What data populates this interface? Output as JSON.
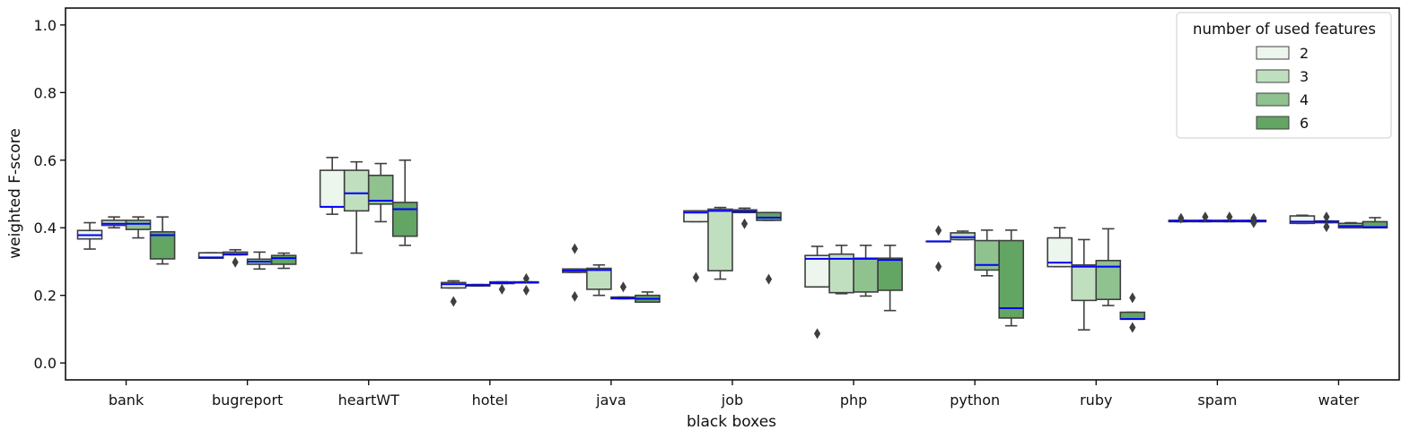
{
  "chart_data": {
    "type": "box",
    "xlabel": "black boxes",
    "ylabel": "weighted F-score",
    "ylim": [
      -0.05,
      1.05
    ],
    "yticks": [
      "0.0",
      "0.2",
      "0.4",
      "0.6",
      "0.8",
      "1.0"
    ],
    "categories": [
      "bank",
      "bugreport",
      "heartWT",
      "hotel",
      "java",
      "job",
      "php",
      "python",
      "ruby",
      "spam",
      "water"
    ],
    "legend": {
      "title": "number of used features",
      "position": "top-right",
      "entries": [
        "2",
        "3",
        "4",
        "6"
      ]
    },
    "colors": {
      "series": [
        "#edf6ed",
        "#c0dfbf",
        "#8fc28f",
        "#63a563"
      ],
      "median": "#0000ff",
      "outline": "#3f3f3f"
    },
    "series": [
      {
        "name": "2",
        "boxes": [
          {
            "q1": 0.367,
            "median": 0.378,
            "q3": 0.392,
            "whislo": 0.337,
            "whishi": 0.415,
            "fliers": []
          },
          {
            "q1": 0.31,
            "median": 0.312,
            "q3": 0.326,
            "whislo": 0.31,
            "whishi": 0.326,
            "fliers": []
          },
          {
            "q1": 0.462,
            "median": 0.462,
            "q3": 0.57,
            "whislo": 0.44,
            "whishi": 0.608,
            "fliers": []
          },
          {
            "q1": 0.222,
            "median": 0.233,
            "q3": 0.238,
            "whislo": 0.222,
            "whishi": 0.243,
            "fliers": [
              0.182
            ]
          },
          {
            "q1": 0.268,
            "median": 0.273,
            "q3": 0.278,
            "whislo": 0.268,
            "whishi": 0.278,
            "fliers": [
              0.338,
              0.197
            ]
          },
          {
            "q1": 0.418,
            "median": 0.445,
            "q3": 0.45,
            "whislo": 0.418,
            "whishi": 0.45,
            "fliers": [
              0.253
            ]
          },
          {
            "q1": 0.225,
            "median": 0.308,
            "q3": 0.318,
            "whislo": 0.225,
            "whishi": 0.345,
            "fliers": [
              0.087
            ]
          },
          {
            "q1": 0.36,
            "median": 0.36,
            "q3": 0.36,
            "whislo": 0.36,
            "whishi": 0.36,
            "fliers": [
              0.392,
              0.285
            ]
          },
          {
            "q1": 0.285,
            "median": 0.297,
            "q3": 0.37,
            "whislo": 0.285,
            "whishi": 0.4,
            "fliers": []
          },
          {
            "q1": 0.418,
            "median": 0.42,
            "q3": 0.422,
            "whislo": 0.418,
            "whishi": 0.422,
            "fliers": [
              0.428
            ]
          },
          {
            "q1": 0.413,
            "median": 0.418,
            "q3": 0.435,
            "whislo": 0.413,
            "whishi": 0.437,
            "fliers": []
          }
        ]
      },
      {
        "name": "3",
        "boxes": [
          {
            "q1": 0.407,
            "median": 0.412,
            "q3": 0.422,
            "whislo": 0.4,
            "whishi": 0.432,
            "fliers": []
          },
          {
            "q1": 0.32,
            "median": 0.322,
            "q3": 0.328,
            "whislo": 0.32,
            "whishi": 0.335,
            "fliers": [
              0.298
            ]
          },
          {
            "q1": 0.45,
            "median": 0.502,
            "q3": 0.57,
            "whislo": 0.325,
            "whishi": 0.595,
            "fliers": []
          },
          {
            "q1": 0.228,
            "median": 0.23,
            "q3": 0.232,
            "whislo": 0.228,
            "whishi": 0.232,
            "fliers": []
          },
          {
            "q1": 0.218,
            "median": 0.275,
            "q3": 0.28,
            "whislo": 0.2,
            "whishi": 0.29,
            "fliers": []
          },
          {
            "q1": 0.273,
            "median": 0.45,
            "q3": 0.455,
            "whislo": 0.248,
            "whishi": 0.46,
            "fliers": []
          },
          {
            "q1": 0.208,
            "median": 0.308,
            "q3": 0.322,
            "whislo": 0.205,
            "whishi": 0.348,
            "fliers": []
          },
          {
            "q1": 0.365,
            "median": 0.372,
            "q3": 0.385,
            "whislo": 0.365,
            "whishi": 0.39,
            "fliers": []
          },
          {
            "q1": 0.185,
            "median": 0.285,
            "q3": 0.29,
            "whislo": 0.098,
            "whishi": 0.365,
            "fliers": []
          },
          {
            "q1": 0.418,
            "median": 0.42,
            "q3": 0.422,
            "whislo": 0.418,
            "whishi": 0.422,
            "fliers": [
              0.432
            ]
          },
          {
            "q1": 0.415,
            "median": 0.418,
            "q3": 0.42,
            "whislo": 0.415,
            "whishi": 0.42,
            "fliers": [
              0.432,
              0.403
            ]
          }
        ]
      },
      {
        "name": "4",
        "boxes": [
          {
            "q1": 0.395,
            "median": 0.412,
            "q3": 0.422,
            "whislo": 0.37,
            "whishi": 0.432,
            "fliers": []
          },
          {
            "q1": 0.292,
            "median": 0.3,
            "q3": 0.307,
            "whislo": 0.278,
            "whishi": 0.328,
            "fliers": []
          },
          {
            "q1": 0.47,
            "median": 0.48,
            "q3": 0.555,
            "whislo": 0.418,
            "whishi": 0.59,
            "fliers": []
          },
          {
            "q1": 0.235,
            "median": 0.237,
            "q3": 0.24,
            "whislo": 0.235,
            "whishi": 0.24,
            "fliers": [
              0.218
            ]
          },
          {
            "q1": 0.19,
            "median": 0.192,
            "q3": 0.195,
            "whislo": 0.19,
            "whishi": 0.195,
            "fliers": [
              0.225
            ]
          },
          {
            "q1": 0.445,
            "median": 0.448,
            "q3": 0.453,
            "whislo": 0.445,
            "whishi": 0.458,
            "fliers": [
              0.412
            ]
          },
          {
            "q1": 0.21,
            "median": 0.308,
            "q3": 0.31,
            "whislo": 0.198,
            "whishi": 0.348,
            "fliers": []
          },
          {
            "q1": 0.275,
            "median": 0.29,
            "q3": 0.362,
            "whislo": 0.258,
            "whishi": 0.393,
            "fliers": []
          },
          {
            "q1": 0.188,
            "median": 0.285,
            "q3": 0.303,
            "whislo": 0.17,
            "whishi": 0.397,
            "fliers": []
          },
          {
            "q1": 0.418,
            "median": 0.42,
            "q3": 0.422,
            "whislo": 0.418,
            "whishi": 0.422,
            "fliers": [
              0.432
            ]
          },
          {
            "q1": 0.4,
            "median": 0.405,
            "q3": 0.413,
            "whislo": 0.4,
            "whishi": 0.415,
            "fliers": []
          }
        ]
      },
      {
        "name": "6",
        "boxes": [
          {
            "q1": 0.308,
            "median": 0.378,
            "q3": 0.388,
            "whislo": 0.293,
            "whishi": 0.432,
            "fliers": []
          },
          {
            "q1": 0.292,
            "median": 0.31,
            "q3": 0.318,
            "whislo": 0.28,
            "whishi": 0.325,
            "fliers": []
          },
          {
            "q1": 0.375,
            "median": 0.455,
            "q3": 0.475,
            "whislo": 0.348,
            "whishi": 0.6,
            "fliers": []
          },
          {
            "q1": 0.237,
            "median": 0.238,
            "q3": 0.24,
            "whislo": 0.237,
            "whishi": 0.24,
            "fliers": [
              0.25,
              0.215
            ]
          },
          {
            "q1": 0.18,
            "median": 0.19,
            "q3": 0.2,
            "whislo": 0.18,
            "whishi": 0.21,
            "fliers": []
          },
          {
            "q1": 0.422,
            "median": 0.43,
            "q3": 0.445,
            "whislo": 0.422,
            "whishi": 0.445,
            "fliers": [
              0.248
            ]
          },
          {
            "q1": 0.215,
            "median": 0.305,
            "q3": 0.31,
            "whislo": 0.155,
            "whishi": 0.348,
            "fliers": []
          },
          {
            "q1": 0.133,
            "median": 0.162,
            "q3": 0.362,
            "whislo": 0.11,
            "whishi": 0.393,
            "fliers": []
          },
          {
            "q1": 0.13,
            "median": 0.13,
            "q3": 0.15,
            "whislo": 0.13,
            "whishi": 0.15,
            "fliers": [
              0.193,
              0.105
            ]
          },
          {
            "q1": 0.418,
            "median": 0.42,
            "q3": 0.422,
            "whislo": 0.418,
            "whishi": 0.422,
            "fliers": [
              0.428,
              0.415
            ]
          },
          {
            "q1": 0.4,
            "median": 0.402,
            "q3": 0.418,
            "whislo": 0.4,
            "whishi": 0.43,
            "fliers": []
          }
        ]
      }
    ]
  }
}
